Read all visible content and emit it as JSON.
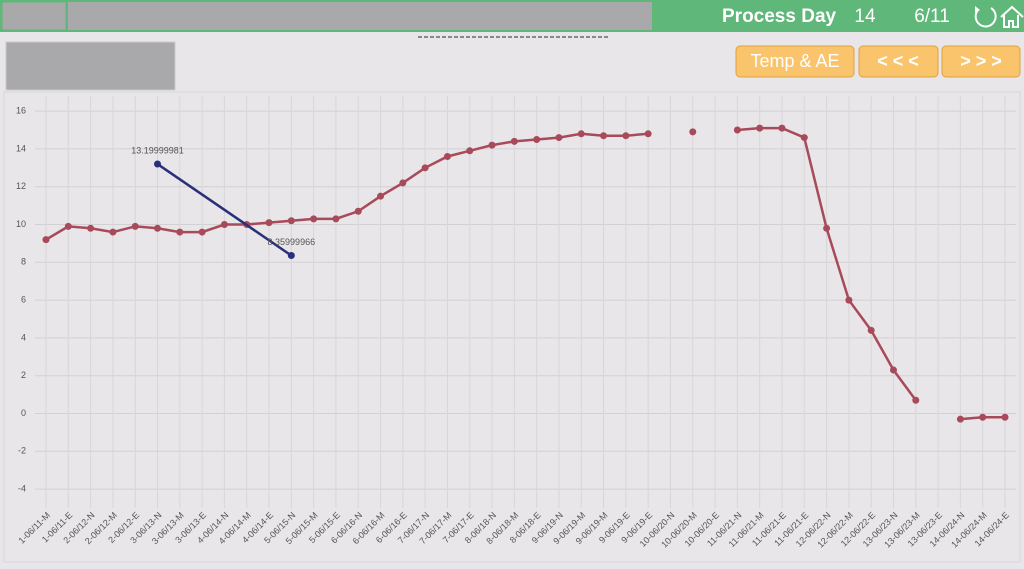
{
  "header": {
    "title": "Process Day",
    "day": "14",
    "date": "6/11"
  },
  "buttons": [
    "Temp & AE",
    "< < <",
    "> > >"
  ],
  "chart_data": {
    "type": "line",
    "categories": [
      "1-06/11-M",
      "1-06/11-E",
      "2-06/12-N",
      "2-06/12-M",
      "2-06/12-E",
      "3-06/13-N",
      "3-06/13-M",
      "3-06/13-E",
      "4-06/14-N",
      "4-06/14-M",
      "4-06/14-E",
      "5-06/15-N",
      "5-06/15-M",
      "5-06/15-E",
      "6-06/16-N",
      "6-06/16-M",
      "6-06/16-E",
      "7-06/17-N",
      "7-06/17-M",
      "7-06/17-E",
      "8-06/18-N",
      "8-06/18-M",
      "8-06/18-E",
      "9-06/19-N",
      "9-06/19-M",
      "9-06/19-M",
      "9-06/19-E",
      "9-06/19-E",
      "10-06/20-N",
      "10-06/20-M",
      "10-06/20-E",
      "11-06/21-N",
      "11-06/21-M",
      "11-06/21-E",
      "11-06/21-E",
      "12-06/22-N",
      "12-06/22-M",
      "12-06/22-E",
      "13-06/23-N",
      "13-06/23-M",
      "13-06/23-E",
      "14-06/24-N",
      "14-06/24-M",
      "14-06/24-E"
    ],
    "series": [
      {
        "color": "#a84a5a",
        "values": [
          9.2,
          9.9,
          9.8,
          9.6,
          9.9,
          9.8,
          9.6,
          9.6,
          10.0,
          10.0,
          10.1,
          10.2,
          10.3,
          10.3,
          10.7,
          11.5,
          12.2,
          13.0,
          13.6,
          13.9,
          14.2,
          14.4,
          14.5,
          14.6,
          14.8,
          14.7,
          14.7,
          14.8,
          null,
          14.9,
          null,
          15.0,
          15.1,
          15.1,
          14.6,
          9.8,
          6.0,
          4.4,
          2.3,
          0.7,
          null,
          -0.3,
          -0.2,
          -0.2
        ]
      },
      {
        "color": "#2a2f7a",
        "span_gaps": true,
        "data_labels": true,
        "values": [
          null,
          null,
          null,
          null,
          null,
          13.19999981,
          null,
          null,
          null,
          null,
          null,
          8.35999966,
          null,
          null,
          null,
          null,
          null,
          null,
          null,
          null,
          null,
          null,
          null,
          null,
          null,
          null,
          null,
          null,
          null,
          null,
          null,
          null,
          null,
          null,
          null,
          null,
          null,
          null,
          null,
          null,
          null,
          null,
          null,
          null
        ]
      }
    ],
    "ylim": [
      -5,
      16.8
    ],
    "yticks": [
      -4,
      -2,
      0,
      2,
      4,
      6,
      8,
      10,
      12,
      14,
      16
    ],
    "grid": true
  }
}
